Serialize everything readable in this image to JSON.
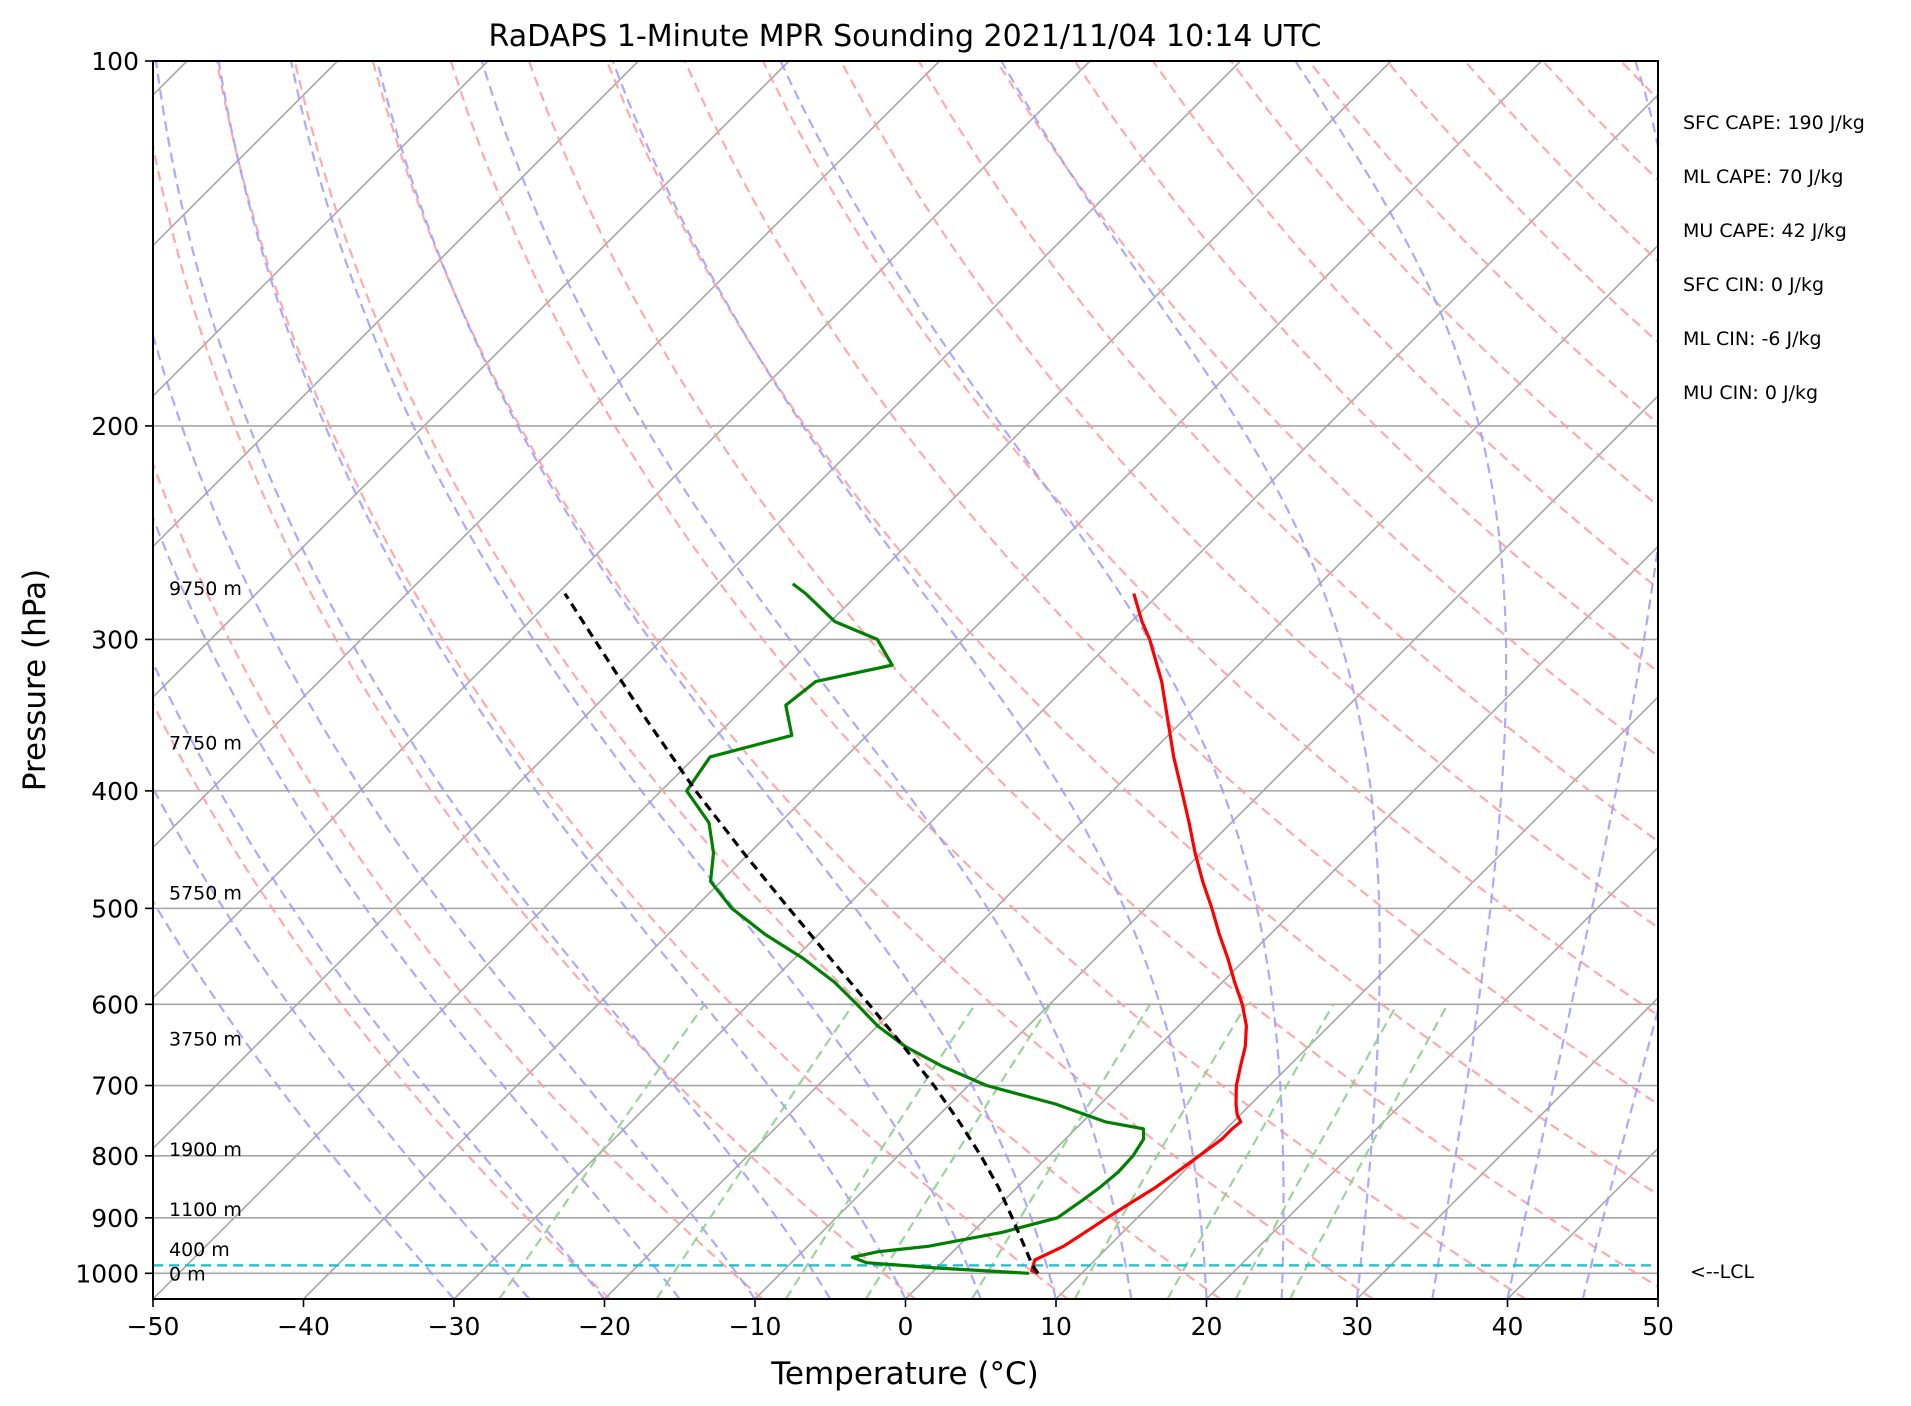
{
  "chart_data": {
    "type": "line",
    "title": "RaDAPS 1-Minute MPR Sounding 2021/11/04 10:14 UTC",
    "xlabel": "Temperature (°C)",
    "ylabel": "Pressure (hPa)",
    "xlim": [
      -50,
      50
    ],
    "ylim": [
      1050,
      100
    ],
    "y_scale": "log",
    "x_ticks": [
      -50,
      -40,
      -30,
      -20,
      -10,
      0,
      10,
      20,
      30,
      40,
      50
    ],
    "x_tick_labels": [
      "−50",
      "−40",
      "−30",
      "−20",
      "−10",
      "0",
      "10",
      "20",
      "30",
      "40",
      "50"
    ],
    "y_ticks": [
      100,
      200,
      300,
      400,
      500,
      600,
      700,
      800,
      900,
      1000
    ],
    "y_tick_labels": [
      "100",
      "200",
      "300",
      "400",
      "500",
      "600",
      "700",
      "800",
      "900",
      "1000"
    ],
    "grid": true,
    "skew_degrees": 45,
    "series": [
      {
        "role": "temperature",
        "color": "#ff0000",
        "style": "solid",
        "points": [
          [
            1000,
            7.1
          ],
          [
            995,
            6.5
          ],
          [
            975,
            6.0
          ],
          [
            950,
            7.0
          ],
          [
            925,
            7.5
          ],
          [
            900,
            8.0
          ],
          [
            870,
            8.7
          ],
          [
            850,
            9.2
          ],
          [
            825,
            9.6
          ],
          [
            800,
            10.0
          ],
          [
            775,
            10.4
          ],
          [
            760,
            10.4
          ],
          [
            750,
            10.5
          ],
          [
            740,
            9.8
          ],
          [
            725,
            9.0
          ],
          [
            700,
            7.8
          ],
          [
            675,
            6.8
          ],
          [
            650,
            5.8
          ],
          [
            625,
            4.5
          ],
          [
            600,
            2.8
          ],
          [
            575,
            0.8
          ],
          [
            550,
            -1.2
          ],
          [
            525,
            -3.4
          ],
          [
            500,
            -5.6
          ],
          [
            475,
            -8.0
          ],
          [
            450,
            -10.4
          ],
          [
            425,
            -12.8
          ],
          [
            400,
            -15.4
          ],
          [
            375,
            -18.2
          ],
          [
            350,
            -21.0
          ],
          [
            325,
            -24.0
          ],
          [
            300,
            -27.6
          ],
          [
            290,
            -29.3
          ],
          [
            275,
            -31.7
          ]
        ]
      },
      {
        "role": "dewpoint",
        "color": "#008000",
        "style": "solid",
        "points": [
          [
            1000,
            6.5
          ],
          [
            990,
            0.0
          ],
          [
            980,
            -5.0
          ],
          [
            970,
            -6.3
          ],
          [
            960,
            -5.0
          ],
          [
            950,
            -2.0
          ],
          [
            925,
            2.0
          ],
          [
            900,
            4.7
          ],
          [
            870,
            5.2
          ],
          [
            850,
            5.5
          ],
          [
            825,
            5.7
          ],
          [
            800,
            5.6
          ],
          [
            775,
            5.2
          ],
          [
            760,
            4.5
          ],
          [
            750,
            1.5
          ],
          [
            725,
            -3.0
          ],
          [
            700,
            -8.8
          ],
          [
            675,
            -13.0
          ],
          [
            650,
            -16.8
          ],
          [
            625,
            -20.0
          ],
          [
            600,
            -22.8
          ],
          [
            575,
            -25.8
          ],
          [
            550,
            -29.4
          ],
          [
            525,
            -33.6
          ],
          [
            500,
            -37.5
          ],
          [
            475,
            -40.7
          ],
          [
            450,
            -42.4
          ],
          [
            425,
            -44.7
          ],
          [
            400,
            -48.3
          ],
          [
            375,
            -49.0
          ],
          [
            360,
            -45.0
          ],
          [
            340,
            -47.4
          ],
          [
            325,
            -47.0
          ],
          [
            315,
            -43.0
          ],
          [
            300,
            -45.7
          ],
          [
            290,
            -49.7
          ],
          [
            275,
            -53.5
          ],
          [
            270,
            -55.0
          ]
        ]
      },
      {
        "role": "parcel",
        "color": "#000000",
        "style": "dashed",
        "points": [
          [
            1000,
            7.1
          ],
          [
            985,
            6.2
          ],
          [
            950,
            4.4
          ],
          [
            900,
            1.7
          ],
          [
            850,
            -1.2
          ],
          [
            800,
            -4.5
          ],
          [
            750,
            -8.2
          ],
          [
            700,
            -12.3
          ],
          [
            650,
            -16.9
          ],
          [
            600,
            -22.0
          ],
          [
            550,
            -27.6
          ],
          [
            500,
            -33.7
          ],
          [
            450,
            -40.4
          ],
          [
            400,
            -47.7
          ],
          [
            350,
            -55.6
          ],
          [
            300,
            -64.5
          ],
          [
            275,
            -69.5
          ]
        ]
      }
    ],
    "lcl_hPa": 985,
    "lcl_color": "#17becf",
    "lcl_label": "<--LCL",
    "reference_line_colors": {
      "isotherms_and_isobars": "#a6a6a6",
      "dry_adiabats": "#ff9b9b",
      "moist_adiabats": "#9b9bff",
      "mixing_ratio": "#8fcf8f"
    },
    "height_labels": [
      {
        "text": "0 m",
        "p": 1000
      },
      {
        "text": "400 m",
        "p": 955
      },
      {
        "text": "1100 m",
        "p": 885
      },
      {
        "text": "1900 m",
        "p": 790
      },
      {
        "text": "3750 m",
        "p": 640
      },
      {
        "text": "5750 m",
        "p": 485
      },
      {
        "text": "7750 m",
        "p": 365
      },
      {
        "text": "9750 m",
        "p": 272
      }
    ],
    "indices": [
      {
        "name": "SFC CAPE",
        "value": "SFC CAPE: 190 J/kg"
      },
      {
        "name": "ML CAPE",
        "value": "ML CAPE: 70 J/kg"
      },
      {
        "name": "MU CAPE",
        "value": "MU CAPE: 42 J/kg"
      },
      {
        "name": "SFC CIN",
        "value": "SFC CIN: 0 J/kg"
      },
      {
        "name": "ML CIN",
        "value": "ML CIN: -6 J/kg"
      },
      {
        "name": "MU CIN",
        "value": "MU CIN: 0 J/kg"
      }
    ]
  }
}
